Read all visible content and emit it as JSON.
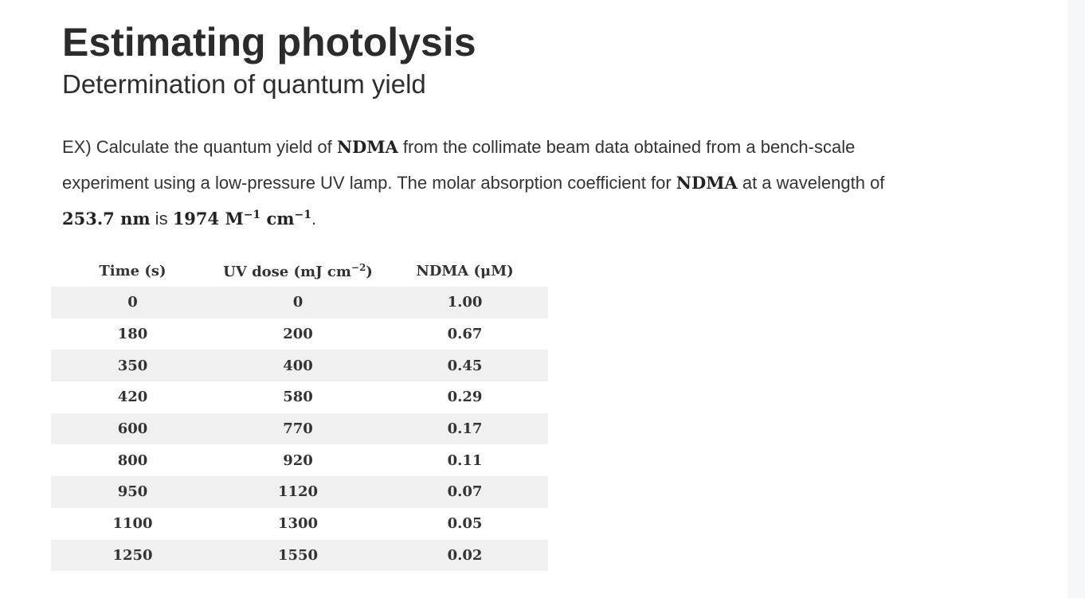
{
  "slide": {
    "title": "Estimating photolysis",
    "subtitle": "Determination of quantum yield"
  },
  "problem": {
    "l1_a": "EX) Calculate the quantum yield of ",
    "l1_b": "NDMA",
    "l1_c": " from the collimate beam data obtained from a bench-scale",
    "l2_a": "experiment using a low-pressure UV lamp. The molar absorption coefficient for ",
    "l2_b": "NDMA",
    "l2_c": " at a wavelength of",
    "l3_wavelength": "253.7 nm",
    "l3_is": " is ",
    "l3_coef": "1974 M",
    "l3_exp1": "−1",
    "l3_unit": " cm",
    "l3_exp2": "−1",
    "l3_end": "."
  },
  "table": {
    "headers": {
      "time": "Time (s)",
      "dose_a": "UV dose (mJ cm",
      "dose_exp": "−2",
      "dose_b": ")",
      "ndma": "NDMA (μM)"
    },
    "rows": [
      {
        "time": "0",
        "dose": "0",
        "ndma": "1.00"
      },
      {
        "time": "180",
        "dose": "200",
        "ndma": "0.67"
      },
      {
        "time": "350",
        "dose": "400",
        "ndma": "0.45"
      },
      {
        "time": "420",
        "dose": "580",
        "ndma": "0.29"
      },
      {
        "time": "600",
        "dose": "770",
        "ndma": "0.17"
      },
      {
        "time": "800",
        "dose": "920",
        "ndma": "0.11"
      },
      {
        "time": "950",
        "dose": "1120",
        "ndma": "0.07"
      },
      {
        "time": "1100",
        "dose": "1300",
        "ndma": "0.05"
      },
      {
        "time": "1250",
        "dose": "1550",
        "ndma": "0.02"
      }
    ]
  }
}
